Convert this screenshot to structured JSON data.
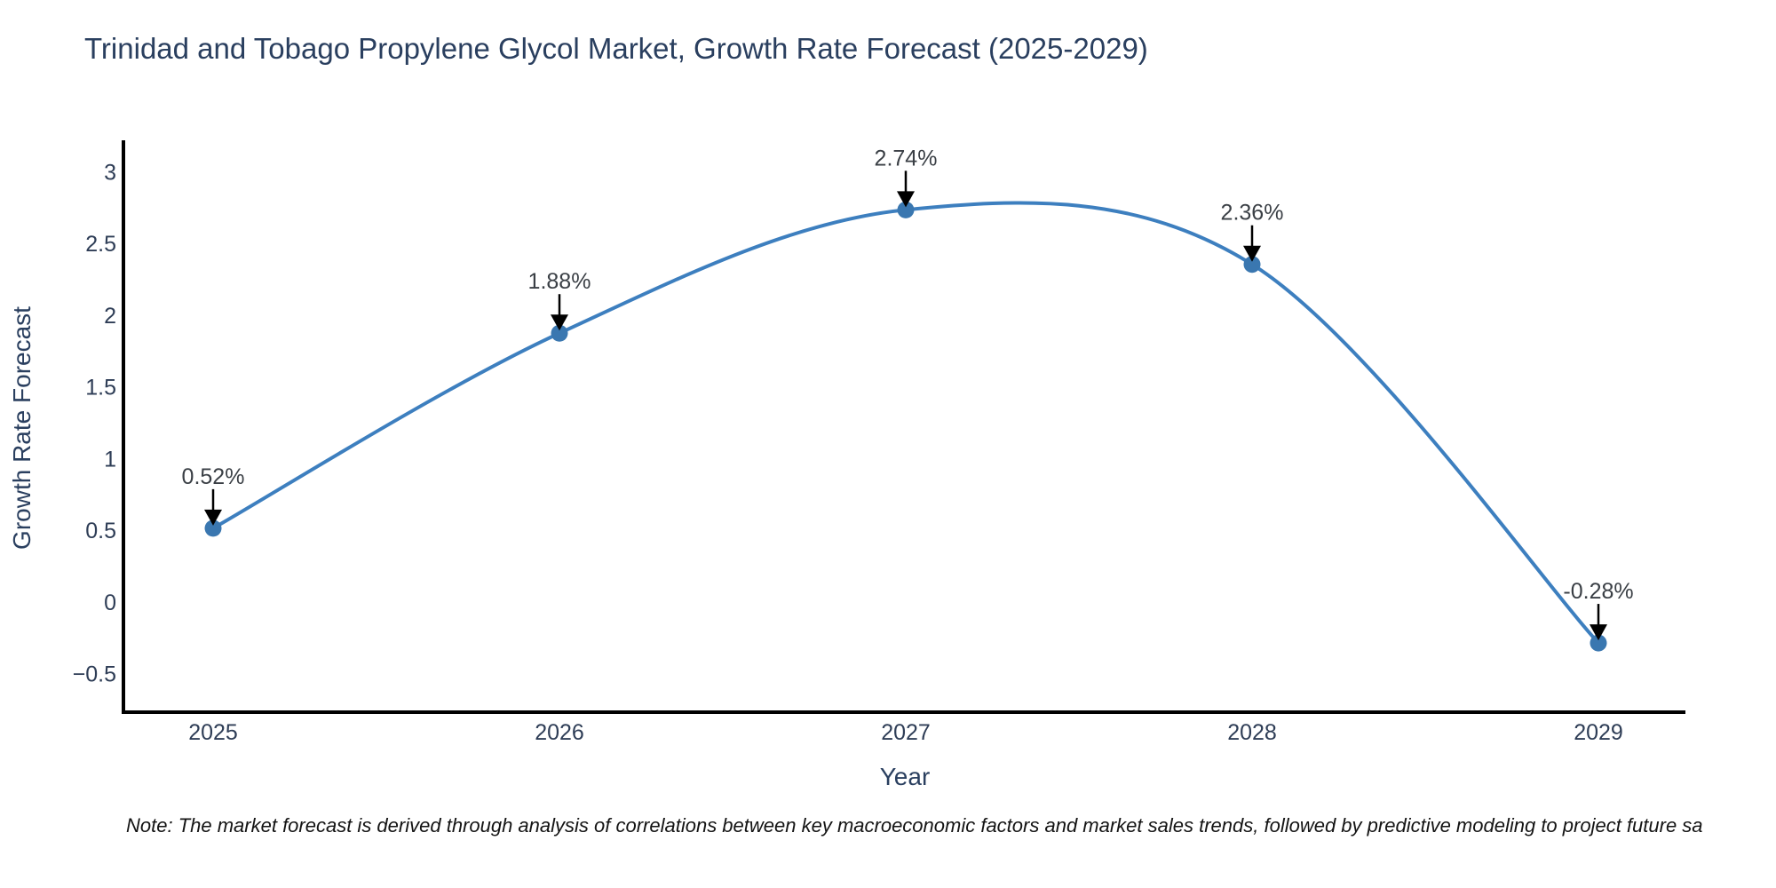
{
  "chart_data": {
    "type": "line",
    "line_shape": "spline",
    "title": "Trinidad and Tobago Propylene Glycol Market, Growth Rate Forecast (2025-2029)",
    "xlabel": "Year",
    "ylabel": "Growth Rate Forecast",
    "categories": [
      "2025",
      "2026",
      "2027",
      "2028",
      "2029"
    ],
    "values": [
      0.52,
      1.88,
      2.74,
      2.36,
      -0.28
    ],
    "point_labels": [
      "0.52%",
      "1.88%",
      "2.74%",
      "2.36%",
      "-0.28%"
    ],
    "ytick_values": [
      3,
      2.5,
      2,
      1.5,
      1,
      0.5,
      0,
      -0.5
    ],
    "ytick_labels": [
      "3",
      "2.5",
      "2",
      "1.5",
      "1",
      "0.5",
      "0",
      "−0.5"
    ],
    "ylim": [
      -0.7625,
      3.2375
    ],
    "grid": false,
    "legend": "none",
    "annotation_style": "label-above-with-down-arrow",
    "colors": {
      "line": "#3d7fbf",
      "marker": "#3a77b0",
      "axis": "#000000",
      "title": "#2a3f5f",
      "axis_label": "#2a3f5f",
      "tick_label": "#2e3d56",
      "annotation_text": "#3a3f45",
      "arrow": "#000000",
      "background": "#ffffff"
    }
  },
  "note": {
    "text": "Note: The market forecast is derived through analysis of correlations between key macroeconomic factors and market sales trends, followed by predictive modeling to project future sa"
  }
}
